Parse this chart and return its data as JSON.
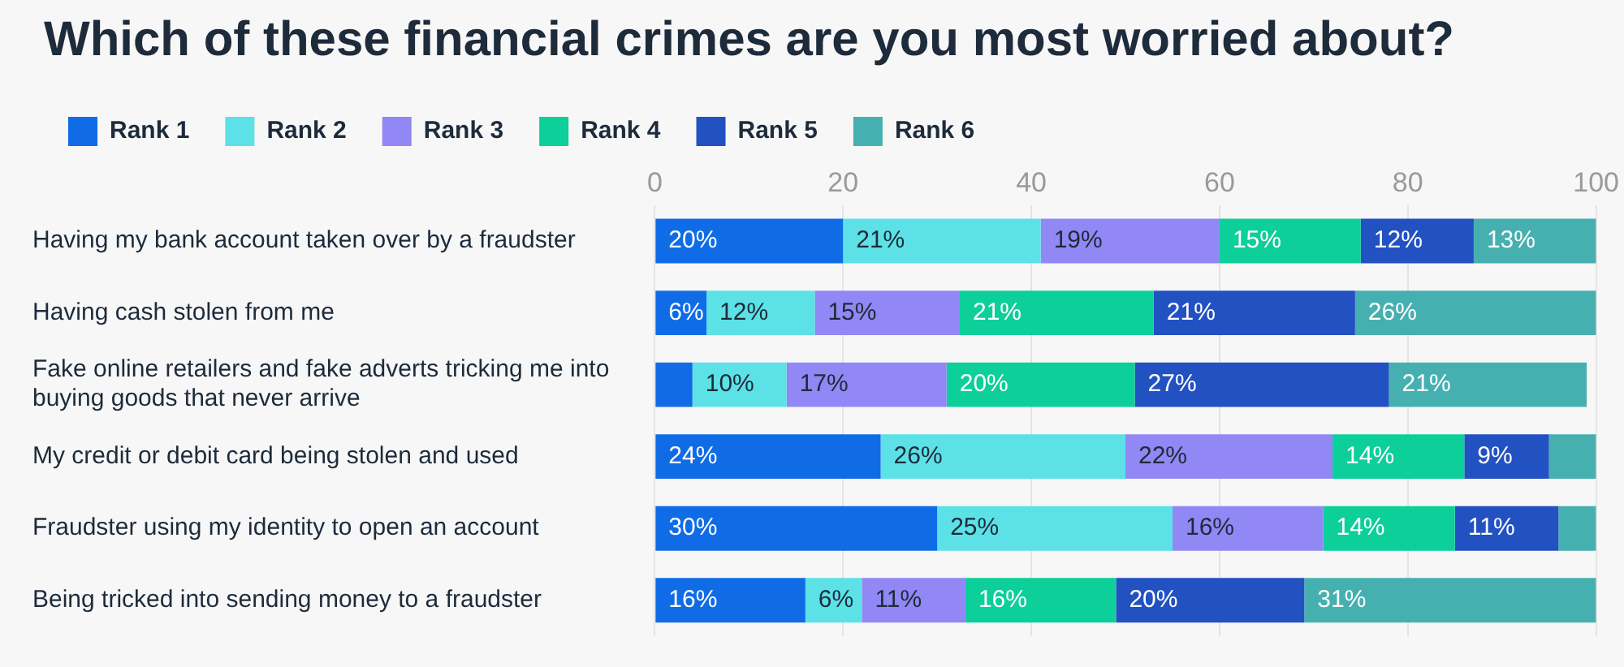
{
  "chart_data": {
    "type": "bar",
    "orientation": "horizontal",
    "stacked": true,
    "title": "Which of these financial crimes are you most worried about?",
    "categories": [
      "Having my bank account taken over by a fraudster",
      "Having cash stolen from me",
      "Fake online retailers and fake adverts tricking me into buying goods that never arrive",
      "My credit or debit card being stolen and used",
      "Fraudster using my identity to open an account",
      "Being tricked into sending money to a fraudster"
    ],
    "series": [
      {
        "name": "Rank 1",
        "color": "#0f6ce6",
        "values": [
          20,
          5.5,
          4,
          24,
          30,
          16
        ],
        "value_labels": [
          "20%",
          "6%",
          null,
          "24%",
          "30%",
          "16%"
        ]
      },
      {
        "name": "Rank 2",
        "color": "#5ce1e6",
        "values": [
          21,
          11.5,
          10,
          26,
          25,
          6
        ],
        "value_labels": [
          "21%",
          "12%",
          "10%",
          "26%",
          "25%",
          "6%"
        ]
      },
      {
        "name": "Rank 3",
        "color": "#9187f5",
        "values": [
          19,
          15.4,
          17,
          22,
          16,
          11
        ],
        "value_labels": [
          "19%",
          "15%",
          "17%",
          "22%",
          "16%",
          "11%"
        ]
      },
      {
        "name": "Rank 4",
        "color": "#0ccf9a",
        "values": [
          15,
          20.6,
          20,
          14,
          14,
          16
        ],
        "value_labels": [
          "15%",
          "21%",
          "20%",
          "14%",
          "14%",
          "16%"
        ]
      },
      {
        "name": "Rank 5",
        "color": "#2251c2",
        "values": [
          12,
          21.4,
          27,
          9,
          11,
          20
        ],
        "value_labels": [
          "12%",
          "21%",
          "27%",
          "9%",
          "11%",
          "20%"
        ]
      },
      {
        "name": "Rank 6",
        "color": "#46b0b0",
        "values": [
          13,
          25.6,
          21,
          5,
          4,
          31
        ],
        "value_labels": [
          "13%",
          "26%",
          "21%",
          null,
          null,
          "31%"
        ]
      }
    ],
    "xlim": [
      0,
      100
    ],
    "xticks": [
      0,
      20,
      40,
      60,
      80,
      100
    ],
    "grid": "x",
    "legend": "top left"
  }
}
